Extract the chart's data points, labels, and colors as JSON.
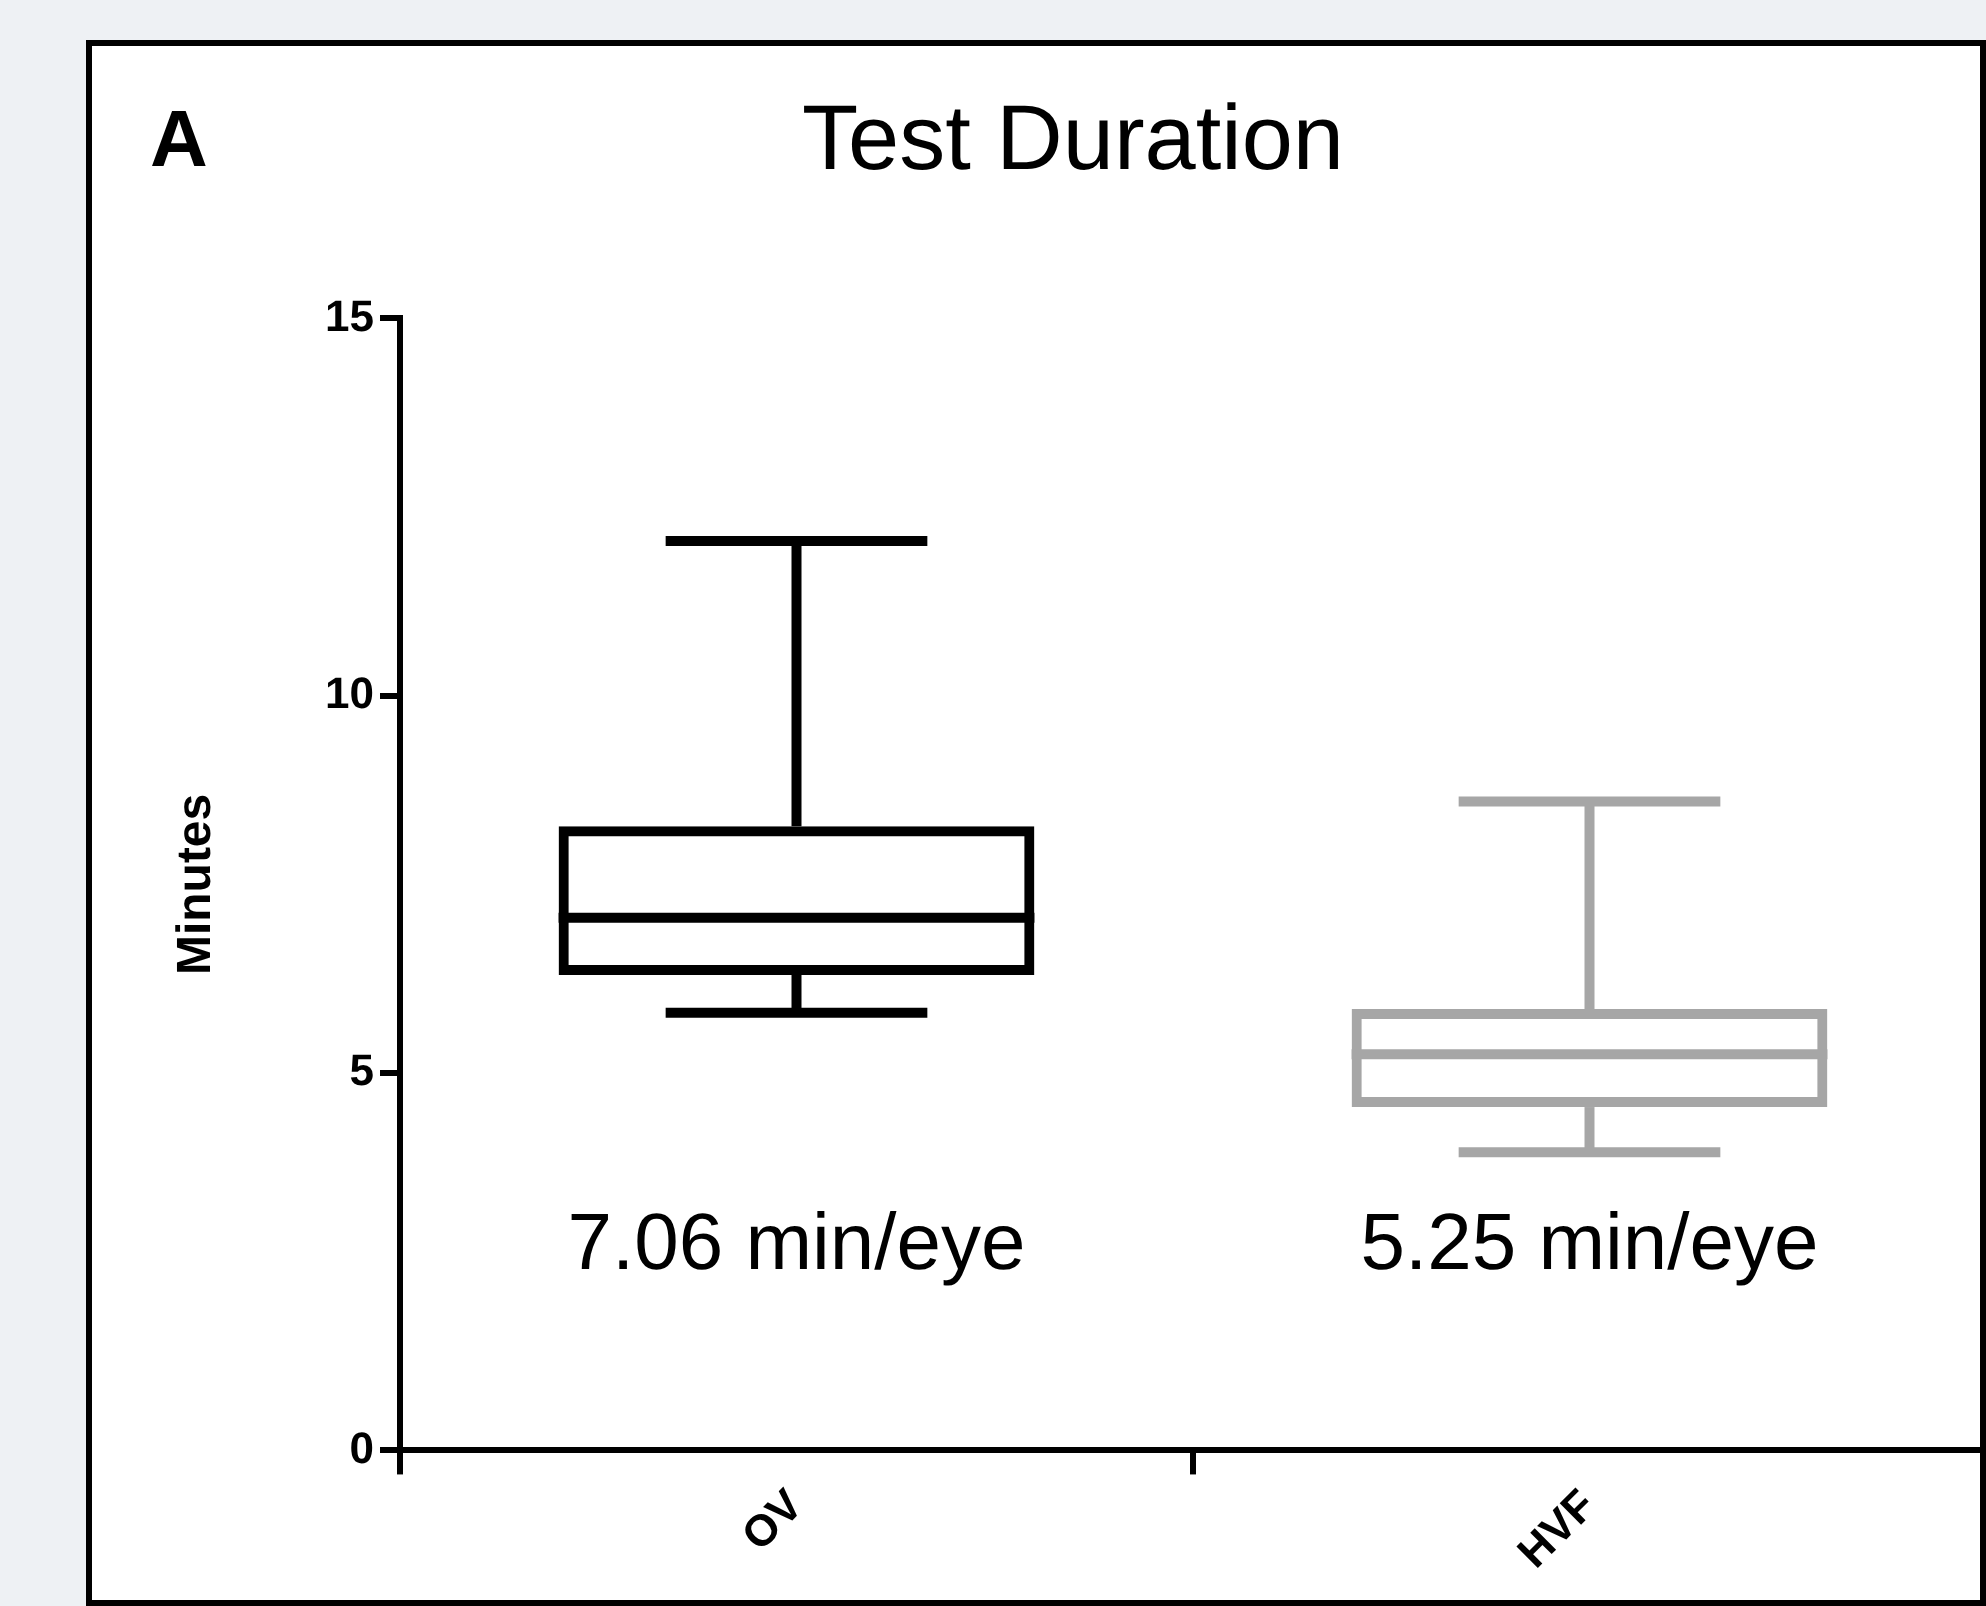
{
  "chart_data": {
    "type": "box",
    "title": "Test Duration",
    "ylabel": "Minutes",
    "categories": [
      "OV",
      "HVF"
    ],
    "boxes": [
      {
        "low": 5.8,
        "q1": 6.3,
        "median": 7.06,
        "q3": 8.27,
        "high": 12.05
      },
      {
        "low": 3.95,
        "q1": 4.55,
        "median": 5.25,
        "q3": 5.85,
        "high": 8.6
      }
    ],
    "colors": [
      "#000000",
      "#a6a6a6"
    ],
    "ylim": [
      0,
      15
    ],
    "yticks": [
      0,
      5,
      10,
      15
    ],
    "grid": false,
    "legend": false,
    "annotations": [
      "A",
      "7.06 min/eye",
      "5.25 min/eye"
    ]
  }
}
